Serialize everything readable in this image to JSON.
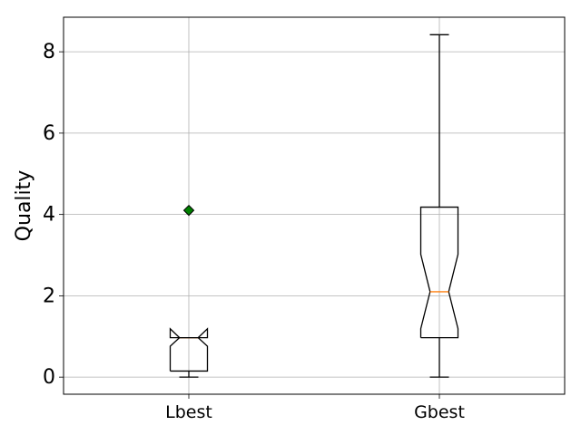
{
  "chart_data": {
    "type": "boxplot",
    "title": "",
    "xlabel": "",
    "ylabel": "Quality",
    "categories": [
      "Lbest",
      "Gbest"
    ],
    "ylim": [
      -0.42,
      8.85
    ],
    "yticks": [
      0,
      2,
      4,
      6,
      8
    ],
    "grid": true,
    "notch": true,
    "boxes": [
      {
        "label": "Lbest",
        "whisker_low": 0.0,
        "q1": 0.15,
        "median": 0.97,
        "q3": 0.97,
        "whisker_high": 0.97,
        "notch_low": 0.76,
        "notch_high": 1.19,
        "outliers": [
          4.1
        ]
      },
      {
        "label": "Gbest",
        "whisker_low": 0.0,
        "q1": 0.97,
        "median": 2.1,
        "q3": 4.18,
        "whisker_high": 8.42,
        "notch_low": 1.19,
        "notch_high": 3.02,
        "outliers": []
      }
    ],
    "colors": {
      "box": "#000000",
      "median": "#ff7f0e",
      "outlier": "#008000",
      "grid": "#b0b0b0"
    }
  }
}
